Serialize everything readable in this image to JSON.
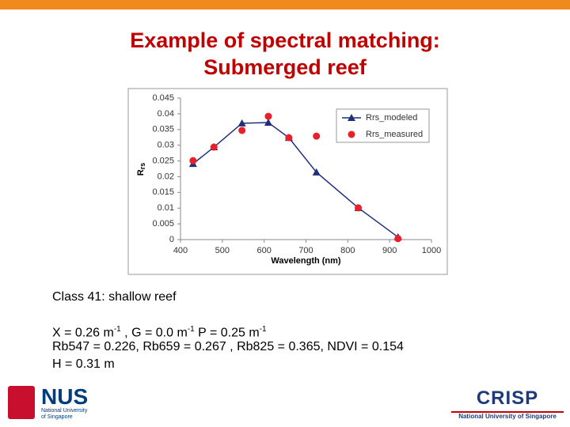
{
  "title_lines": [
    "Example of spectral matching:",
    "Submerged reef"
  ],
  "class_label": "Class 41: shallow reef",
  "params": [
    "X = 0.26 m",
    "-1",
    " ,  G = 0.0 m",
    "-1",
    " P = 0.25 m",
    "-1"
  ],
  "bands": "Rb547 = 0.226, Rb659 = 0.267 , Rb825 = 0.365, NDVI = 0.154",
  "depth": "H = 0.31 m",
  "logo_left": {
    "name": "NUS",
    "sub": [
      "National University",
      "of Singapore"
    ]
  },
  "logo_right": {
    "name": "CRISP",
    "sub": "National University of Singapore"
  },
  "chart_data": {
    "type": "line",
    "x_label": "Wavelength (nm)",
    "y_label": "R",
    "y_label_sub": "rs",
    "xlim": [
      400,
      1000
    ],
    "xticks": [
      400,
      500,
      600,
      700,
      800,
      900,
      1000
    ],
    "ylim": [
      0,
      0.045
    ],
    "yticks": [
      0,
      0.005,
      0.01,
      0.015,
      0.02,
      0.025,
      0.03,
      0.035,
      0.04,
      0.045
    ],
    "legend": "top-right",
    "series": [
      {
        "name": "Rrs_modeled",
        "color": "#1f2f7a",
        "marker": "triangle",
        "x": [
          430,
          480,
          547,
          610,
          659,
          725,
          825,
          920
        ],
        "values": [
          0.0241,
          0.0294,
          0.037,
          0.0372,
          0.0324,
          0.0214,
          0.0101,
          0.0008
        ]
      },
      {
        "name": "Rrs_measured",
        "color": "#e8202a",
        "marker": "circle",
        "x": [
          430,
          480,
          547,
          610,
          659,
          725,
          825,
          920
        ],
        "values": [
          0.0251,
          0.0294,
          0.0347,
          0.0392,
          0.0324,
          0.0329,
          0.0101,
          0.0003
        ]
      }
    ]
  }
}
